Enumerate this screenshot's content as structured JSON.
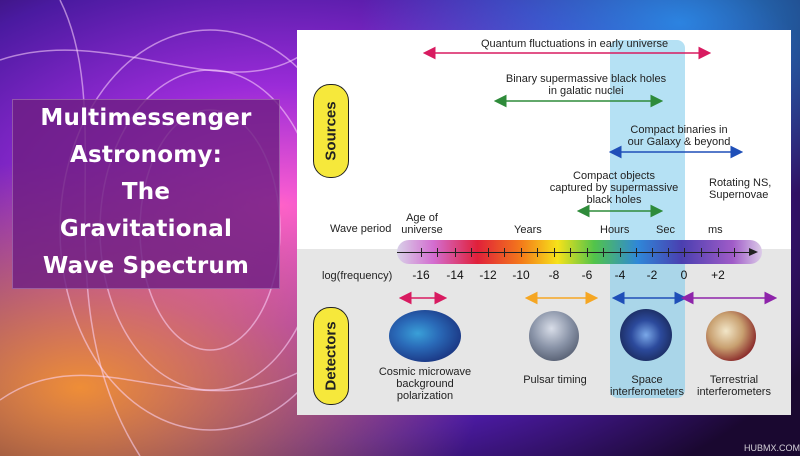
{
  "title_lines": [
    "Multimessenger",
    "Astronomy:",
    "The",
    "Gravitational",
    "Wave Spectrum"
  ],
  "side_labels": {
    "sources": "Sources",
    "detectors": "Detectors"
  },
  "sources": [
    {
      "text": "Quantum fluctuations in early universe",
      "color": "#d81b60"
    },
    {
      "text_lines": [
        "Binary supermassive black holes",
        "in galatic nuclei"
      ],
      "color": "#2e8b3a"
    },
    {
      "text_lines": [
        "Compact binaries in",
        "our Galaxy & beyond"
      ],
      "color": "#1f4fb8"
    },
    {
      "text_lines": [
        "Compact objects",
        "captured by supermassive",
        "black holes"
      ],
      "color": "#2e8b3a"
    },
    {
      "text_lines": [
        "Rotating NS,",
        "Supernovae"
      ]
    }
  ],
  "wave_period": {
    "label": "Wave period",
    "marks": [
      "Age of universe",
      "Years",
      "Hours",
      "Sec",
      "ms"
    ],
    "age_lines": [
      "Age of",
      "universe"
    ]
  },
  "log_frequency": {
    "label": "log(frequency)",
    "ticks": [
      "-16",
      "-14",
      "-12",
      "-10",
      "-8",
      "-6",
      "-4",
      "-2",
      "0",
      "+2"
    ]
  },
  "detectors": [
    {
      "text_lines": [
        "Cosmic microwave",
        "background",
        "polarization"
      ],
      "color": "#d81b60"
    },
    {
      "text_lines": [
        "Pulsar timing"
      ],
      "color": "#f5a623"
    },
    {
      "text_lines": [
        "Space",
        "interferometers"
      ],
      "color": "#1f4fb8"
    },
    {
      "text_lines": [
        "Terrestrial",
        "interferometers"
      ],
      "color": "#8e24aa"
    }
  ],
  "watermark": "HUBMX.COM"
}
